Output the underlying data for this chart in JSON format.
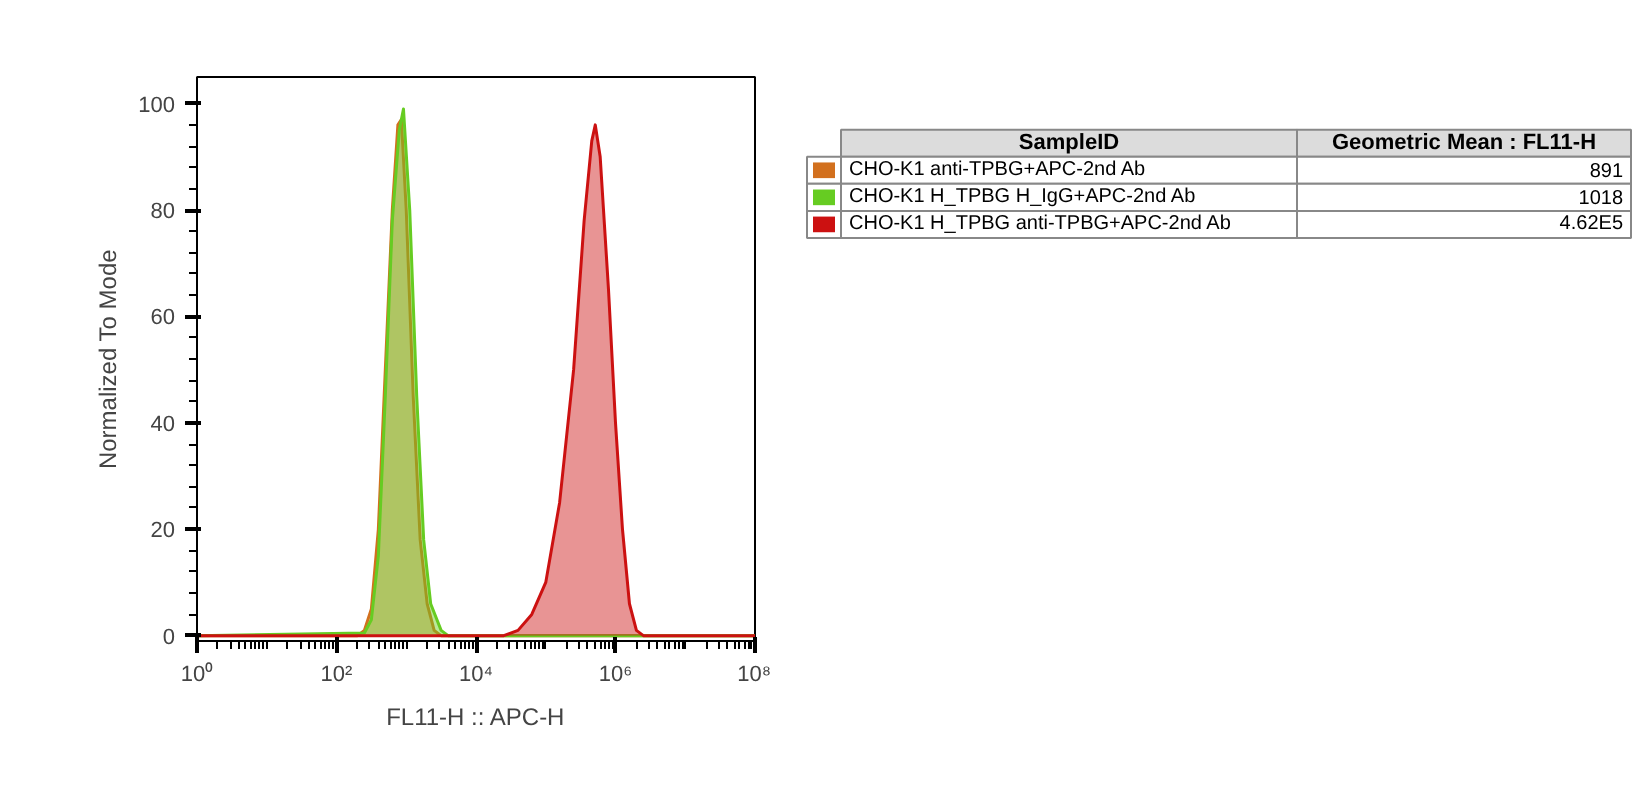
{
  "chart_data": {
    "type": "area",
    "xlabel": "FL11-H :: APC-H",
    "ylabel": "Normalized To Mode",
    "log": "x",
    "xlim": [
      1,
      100000000
    ],
    "ylim": [
      -1,
      105
    ],
    "xticks": [
      {
        "value": 1,
        "label": "10⁰"
      },
      {
        "value": 100,
        "label": "10²"
      },
      {
        "value": 10000,
        "label": "10⁴"
      },
      {
        "value": 1000000,
        "label": "10⁶"
      },
      {
        "value": 100000000,
        "label": "10⁸"
      }
    ],
    "yticks": [
      0,
      20,
      40,
      60,
      80,
      100
    ],
    "grid": false,
    "legend": "right",
    "legend_title": "SampleID",
    "annotations": [
      "Geometric Mean : FL11-H",
      "891",
      "1018",
      "4.62E5"
    ],
    "series": [
      {
        "name": "CHO-K1 anti-TPBG+APC-2nd Ab",
        "color": "#d2701e",
        "x": [
          1,
          200,
          251,
          316,
          398,
          501,
          631,
          759,
          851,
          1000,
          1259,
          1585,
          1995,
          2512,
          3162,
          100000000
        ],
        "values": [
          0,
          0,
          1,
          5,
          20,
          50,
          80,
          96,
          97,
          80,
          45,
          18,
          6,
          1,
          0,
          0
        ]
      },
      {
        "name": "CHO-K1 H_TPBG H_IgG+APC-2nd Ab",
        "color": "#66cc22",
        "x": [
          1,
          251,
          316,
          398,
          501,
          631,
          794,
          912,
          1122,
          1413,
          1778,
          2239,
          3162,
          3981,
          100000000
        ],
        "values": [
          0,
          0.5,
          3,
          15,
          45,
          78,
          95,
          99,
          80,
          45,
          18,
          6,
          1,
          0,
          0
        ]
      },
      {
        "name": "CHO-K1 H_TPBG anti-TPBG+APC-2nd Ab",
        "color": "#cc1111",
        "x": [
          1,
          25000,
          40000,
          63000,
          100000,
          158000,
          251000,
          355000,
          457000,
          513000,
          603000,
          794000,
          1000000,
          1259000,
          1585000,
          1995000,
          2512000,
          100000000
        ],
        "values": [
          0,
          0,
          1,
          4,
          10,
          25,
          50,
          78,
          93,
          96,
          90,
          65,
          40,
          20,
          6,
          1,
          0,
          0
        ]
      }
    ]
  }
}
